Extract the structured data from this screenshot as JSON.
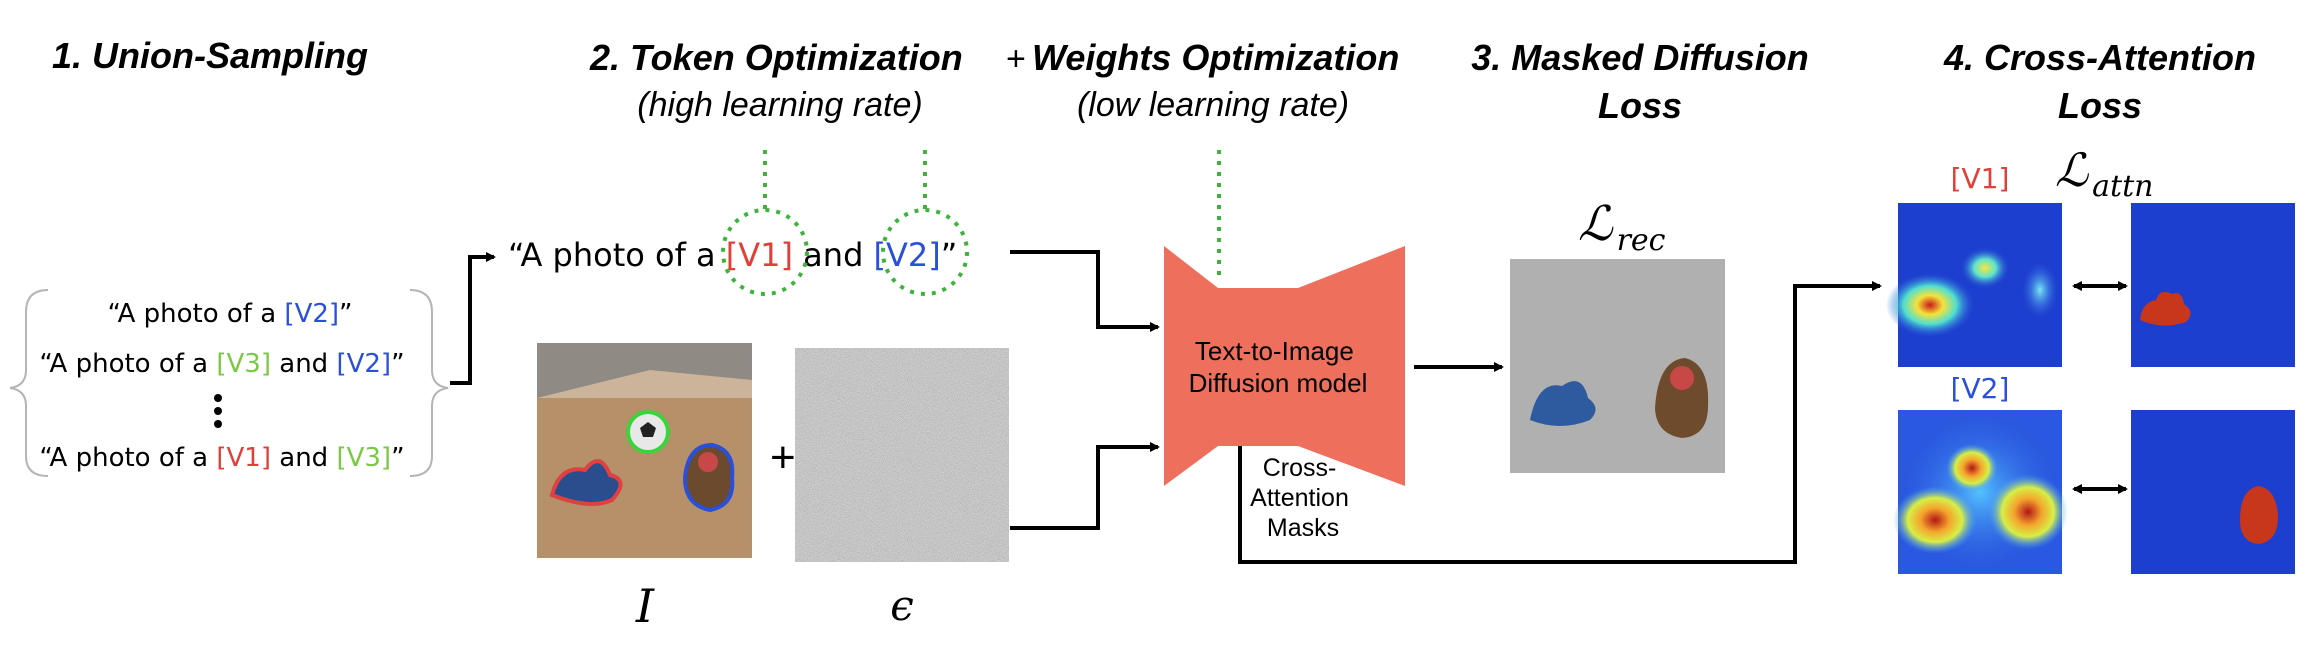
{
  "stages": {
    "union_sampling": "1. Union-Sampling",
    "token_opt": "2. Token Optimization",
    "plus": "+",
    "weights_opt": "Weights Optimization",
    "token_lr": "(high learning rate)",
    "weights_lr": "(low learning rate)",
    "masked_line1": "3. Masked Diffusion",
    "masked_line2": "Loss",
    "cross_line1": "4. Cross-Attention",
    "cross_line2": "Loss"
  },
  "prompts": {
    "p1": {
      "pre": "“A photo of a ",
      "t1": "[V2]",
      "post": "”"
    },
    "p2": {
      "pre": "“A photo of a ",
      "t1": "[V3]",
      "mid": " and ",
      "t2": "[V2]",
      "post": "”"
    },
    "p3": {
      "pre": "“A photo of a ",
      "t1": "[V1]",
      "mid": " and ",
      "t2": "[V3]",
      "post": "”"
    }
  },
  "main_prompt": {
    "pre": "“A photo of a ",
    "t1": "[V1]",
    "mid": " and ",
    "t2": "[V2]",
    "post": "”"
  },
  "symbols": {
    "plus": "+",
    "image": "I",
    "noise": "ϵ",
    "rec_loss": "rec",
    "attn_loss": "attn",
    "script_L": "ℒ"
  },
  "model": {
    "line1": "Text-to-",
    "line2": "Image",
    "line3": "Diffusion model"
  },
  "masks_label": {
    "line1": "Cross-",
    "line2": "Attention",
    "line3": "Masks"
  },
  "attn_labels": {
    "v1": "[V1]",
    "v2": "[V2]"
  },
  "colors": {
    "v1": "#e0403a",
    "v2": "#2a4fd8",
    "v3": "#7ac943",
    "model": "#ee6f5c",
    "guide": "#3db33d",
    "heat_bg": "#1d3fcf"
  }
}
